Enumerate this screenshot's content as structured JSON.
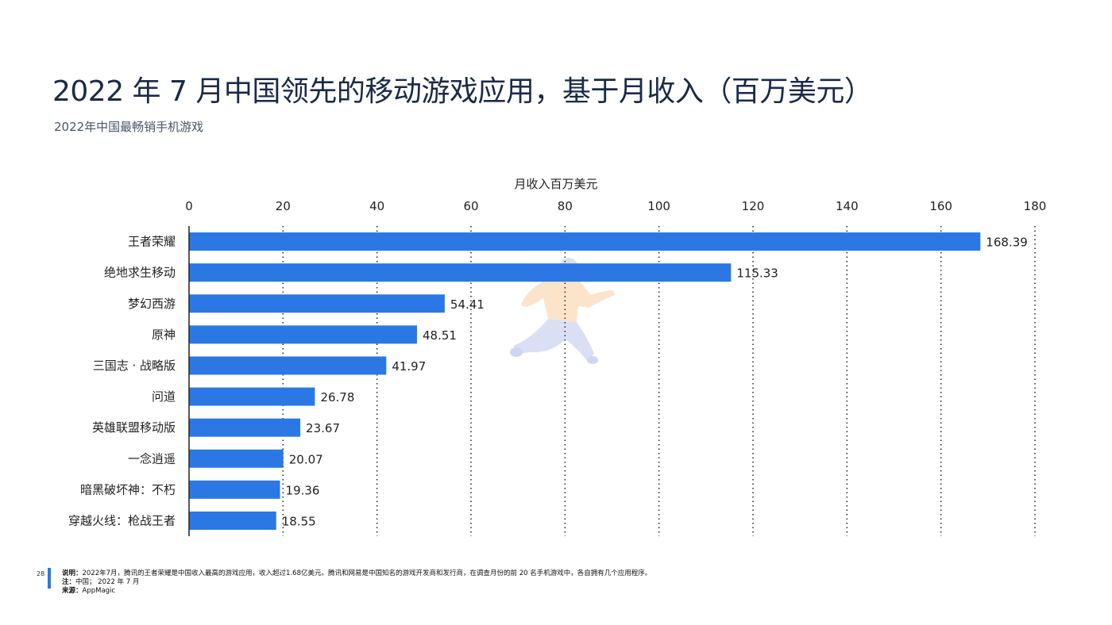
{
  "header": {
    "title": "2022 年 7 月中国领先的移动游戏应用，基于月收入（百万美元）",
    "subtitle": "2022年中国最畅销手机游戏"
  },
  "footer": {
    "page_number": "28",
    "note_label": "说明：",
    "note_text": "2022年7月，腾讯的王者荣耀是中国收入最高的游戏应用，收入超过1.68亿美元。腾讯和网易是中国知名的游戏开发商和发行商，在调查月份的前 20 名手机游戏中，各自拥有几个应用程序。",
    "remark_label": "注：",
    "remark_text": "中国； 2022 年 7 月",
    "source_label": "来源：",
    "source_text": "AppMagic"
  },
  "colors": {
    "bar": "#2b78e4",
    "grid": "#222222",
    "text": "#222222"
  },
  "chart_data": {
    "type": "bar",
    "orientation": "horizontal",
    "title": "",
    "xlabel": "月收入百万美元",
    "ylabel": "",
    "xlim": [
      0,
      180
    ],
    "x_ticks": [
      0,
      20,
      40,
      60,
      80,
      100,
      120,
      140,
      160,
      180
    ],
    "x_axis_position": "top",
    "grid": "vertical-dotted",
    "categories": [
      "王者荣耀",
      "绝地求生移动",
      "梦幻西游",
      "原神",
      "三国志 · 战略版",
      "问道",
      "英雄联盟移动版",
      "一念逍遥",
      "暗黑破坏神：不朽",
      "穿越火线：枪战王者"
    ],
    "values": [
      168.39,
      115.33,
      54.41,
      48.51,
      41.97,
      26.78,
      23.67,
      20.07,
      19.36,
      18.55
    ],
    "value_labels": [
      "168.39",
      "115.33",
      "54.41",
      "48.51",
      "41.97",
      "26.78",
      "23.67",
      "20.07",
      "19.36",
      "18.55"
    ]
  }
}
